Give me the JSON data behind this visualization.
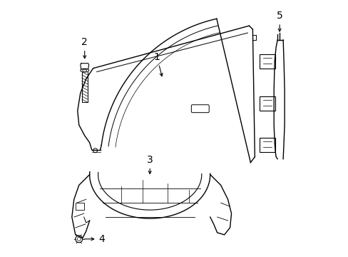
{
  "background_color": "#ffffff",
  "line_color": "#000000",
  "line_width": 1.0,
  "font_size": 10,
  "fig_width": 4.89,
  "fig_height": 3.6,
  "dpi": 100
}
